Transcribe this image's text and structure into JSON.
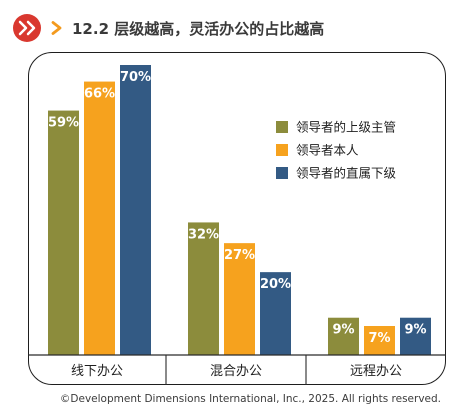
{
  "header": {
    "title": "12.2 层级越高，灵活办公的占比越高",
    "logo_icon": "ddi-logo-icon",
    "arrow_icon": "chevron-right-icon"
  },
  "footer": {
    "text": "©Development Dimensions International, Inc., 2025. All rights reserved."
  },
  "colors": {
    "series_1": "#8c8c3c",
    "series_2": "#f6a21e",
    "series_3": "#335a84",
    "accent": "#f39a1e",
    "logo": "#d9382f"
  },
  "chart_data": {
    "type": "bar",
    "categories": [
      "线下办公",
      "混合办公",
      "远程办公"
    ],
    "series": [
      {
        "name": "领导者的上级主管",
        "values": [
          59,
          32,
          9
        ]
      },
      {
        "name": "领导者本人",
        "values": [
          66,
          27,
          7
        ]
      },
      {
        "name": "领导者的直属下级",
        "values": [
          70,
          20,
          9
        ]
      }
    ],
    "value_suffix": "%",
    "ylim": [
      0,
      70
    ],
    "grid": false,
    "legend_position": "right",
    "xlabel": "",
    "ylabel": ""
  }
}
